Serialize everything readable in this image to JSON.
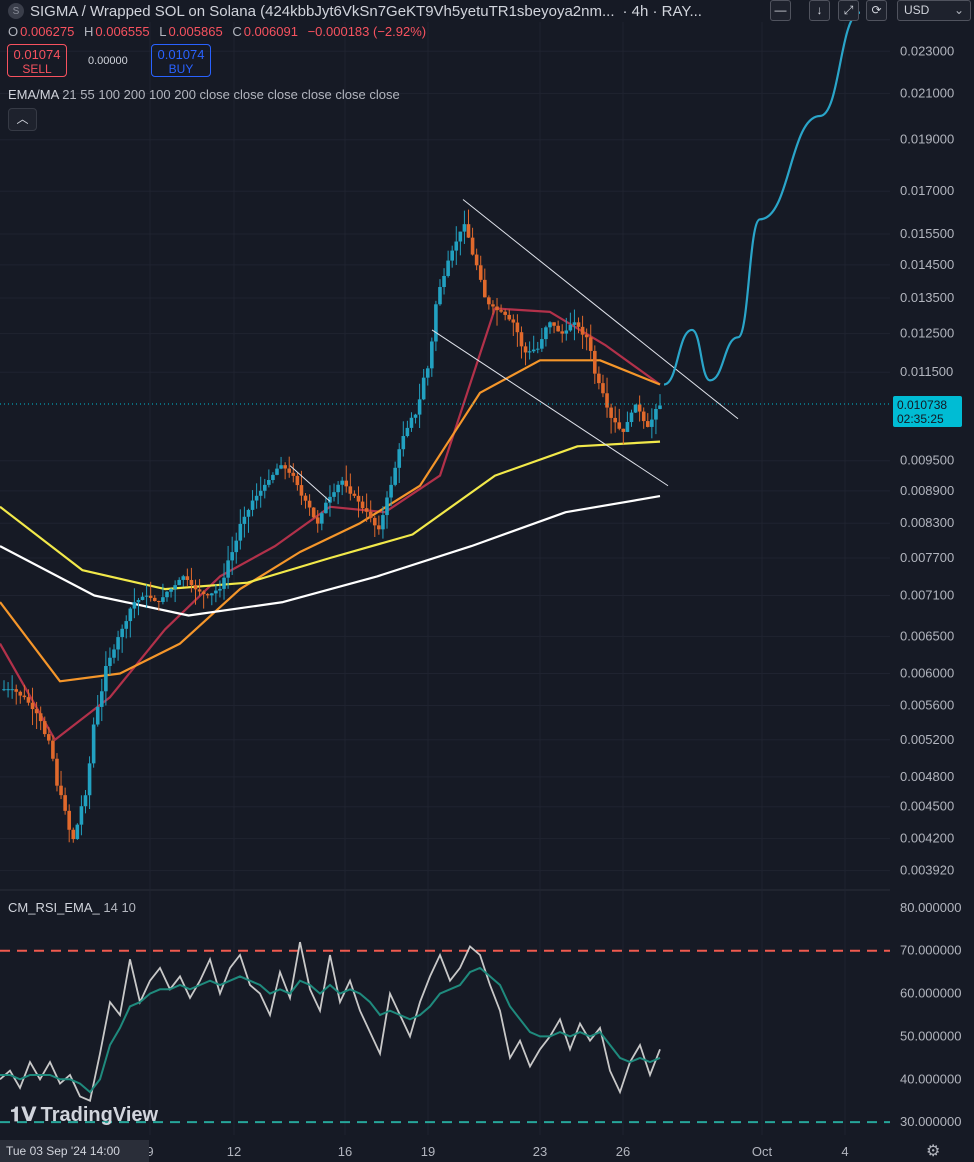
{
  "header": {
    "symbol_icon": "S",
    "title": "SIGMA / Wrapped SOL on Solana (424kbbJyt6VkSn7GeKT9Vh5yetuTR1sbeyoya2nm...",
    "interval": "· 4h · RAY..."
  },
  "ohlc": {
    "o_label": "O",
    "o": "0.006275",
    "h_label": "H",
    "h": "0.006555",
    "l_label": "L",
    "l": "0.005865",
    "c_label": "C",
    "c": "0.006091",
    "change": "−0.000183 (−2.92%)"
  },
  "trade": {
    "sell_price": "0.01074",
    "sell_label": "SELL",
    "spread": "0.00000",
    "buy_price": "0.01074",
    "buy_label": "BUY"
  },
  "indicator": {
    "name": "EMA/MA",
    "params": "21 55 100 200 100 200 close close close close close close"
  },
  "toolbar": {
    "currency": "USD",
    "collapse_icon": "chevron-up-icon",
    "icons": [
      "minus-icon",
      "arrow-down-icon",
      "expand-icon",
      "snapshot-icon"
    ]
  },
  "last_price": {
    "value": "0.010738",
    "countdown": "02:35:25"
  },
  "rsi": {
    "name": "CM_RSI_EMA_",
    "params": "14 10"
  },
  "bottom": {
    "date_badge": "Tue 03 Sep '24   14:00",
    "logo": "TradingView"
  },
  "colors": {
    "background": "#161a25",
    "up": "#26a69a",
    "up_candle": "#22a1c1",
    "down": "#e0692c",
    "ema21": "#b2314a",
    "ema55": "#f5962a",
    "ema100": "#f2e94a",
    "ema200": "#ffffff",
    "projection": "#2aa5c9",
    "rsi_line": "#c8c8c8",
    "rsi_ema": "#1f8a7d",
    "rsi_upper": "#f05a4f",
    "rsi_lower": "#26a69a"
  },
  "chart_data": [
    {
      "type": "candlestick",
      "log_scale": true,
      "ylim": [
        0.0038,
        0.0245
      ],
      "y_ticks": [
        "0.023000",
        "0.021000",
        "0.019000",
        "0.017000",
        "0.015500",
        "0.014500",
        "0.013500",
        "0.012500",
        "0.011500",
        "0.009500",
        "0.008900",
        "0.008300",
        "0.007700",
        "0.007100",
        "0.006500",
        "0.006000",
        "0.005600",
        "0.005200",
        "0.004800",
        "0.004500",
        "0.004200",
        "0.003920"
      ],
      "x_ticks": [
        "9",
        "12",
        "16",
        "19",
        "23",
        "26",
        "Oct",
        "4"
      ],
      "close_key_points": [
        0.0058,
        0.0057,
        0.0055,
        0.0052,
        0.0046,
        0.0042,
        0.0046,
        0.0056,
        0.0062,
        0.0066,
        0.007,
        0.0071,
        0.007,
        0.0072,
        0.0074,
        0.0072,
        0.0071,
        0.0072,
        0.0078,
        0.0084,
        0.0088,
        0.0091,
        0.0094,
        0.0092,
        0.0087,
        0.0083,
        0.0088,
        0.0091,
        0.0088,
        0.0085,
        0.0082,
        0.009,
        0.01,
        0.0105,
        0.0116,
        0.0138,
        0.015,
        0.0158,
        0.0145,
        0.0133,
        0.0131,
        0.0128,
        0.012,
        0.0121,
        0.0128,
        0.0125,
        0.0128,
        0.0124,
        0.0112,
        0.0104,
        0.0101,
        0.0107,
        0.0102,
        0.0107
      ],
      "last_price": 0.010738,
      "projection": [
        0.0112,
        0.0126,
        0.0113,
        0.0124,
        0.016,
        0.02,
        0.025
      ],
      "channel": {
        "upper": [
          0.0167,
          0.0104
        ],
        "lower": [
          0.0126,
          0.009
        ]
      },
      "series": [
        {
          "name": "EMA 21",
          "values": [
            0.0064,
            0.0052,
            0.0057,
            0.0066,
            0.0074,
            0.0079,
            0.0086,
            0.0085,
            0.0092,
            0.0132,
            0.0131,
            0.0122,
            0.0112
          ]
        },
        {
          "name": "EMA 55",
          "values": [
            0.007,
            0.0059,
            0.006,
            0.0064,
            0.0072,
            0.0078,
            0.0083,
            0.009,
            0.011,
            0.0118,
            0.0118,
            0.0112
          ]
        },
        {
          "name": "MA 100",
          "values": [
            0.0086,
            0.0075,
            0.0072,
            0.0073,
            0.0077,
            0.0081,
            0.0092,
            0.0098,
            0.0099
          ]
        },
        {
          "name": "MA 200",
          "values": [
            0.0079,
            0.0071,
            0.0068,
            0.007,
            0.0074,
            0.0079,
            0.0085,
            0.0088
          ]
        }
      ]
    },
    {
      "type": "line",
      "ylim": [
        27,
        83
      ],
      "y_ticks": [
        "80.000000",
        "70.000000",
        "60.000000",
        "50.000000",
        "40.000000",
        "30.000000"
      ],
      "levels": [
        70,
        30
      ],
      "series": [
        {
          "name": "RSI",
          "values": [
            40,
            42,
            38,
            44,
            40,
            44,
            39,
            41,
            36,
            35,
            46,
            58,
            55,
            68,
            58,
            63,
            66,
            61,
            64,
            59,
            63,
            68,
            60,
            66,
            69,
            62,
            60,
            55,
            65,
            59,
            72,
            61,
            56,
            69,
            58,
            63,
            56,
            51,
            46,
            60,
            55,
            50,
            58,
            64,
            69,
            63,
            66,
            71,
            69,
            62,
            56,
            45,
            49,
            43,
            47,
            50,
            54,
            47,
            53,
            49,
            52,
            42,
            37,
            44,
            48,
            41,
            47
          ]
        },
        {
          "name": "RSI EMA",
          "values": [
            41,
            41,
            40,
            41,
            41,
            41,
            40,
            40,
            39,
            37,
            40,
            48,
            52,
            57,
            58,
            60,
            61,
            61,
            62,
            61,
            62,
            63,
            62,
            63,
            64,
            63,
            62,
            60,
            61,
            60,
            63,
            62,
            60,
            62,
            60,
            61,
            60,
            58,
            55,
            56,
            55,
            54,
            55,
            57,
            60,
            61,
            62,
            65,
            66,
            64,
            62,
            57,
            54,
            51,
            50,
            50,
            51,
            50,
            51,
            50,
            51,
            48,
            45,
            44,
            45,
            44,
            45
          ]
        }
      ]
    }
  ]
}
